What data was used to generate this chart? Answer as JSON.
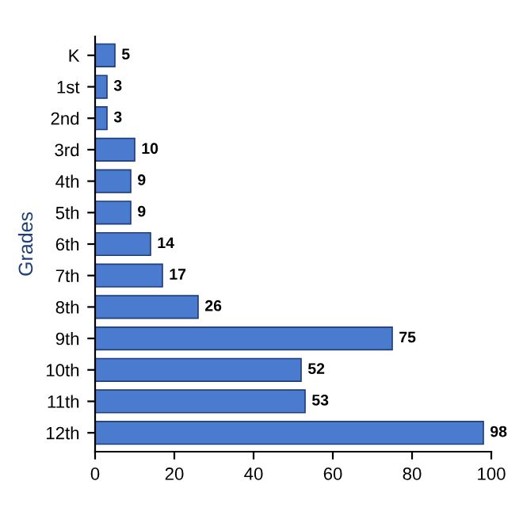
{
  "chart_data": {
    "type": "bar",
    "orientation": "horizontal",
    "ylabel": "Grades",
    "categories": [
      "K",
      "1st",
      "2nd",
      "3rd",
      "4th",
      "5th",
      "6th",
      "7th",
      "8th",
      "9th",
      "10th",
      "11th",
      "12th"
    ],
    "values": [
      5,
      3,
      3,
      10,
      9,
      9,
      14,
      17,
      26,
      75,
      52,
      53,
      98
    ],
    "color": "#4a7bcf",
    "data_labels": true,
    "xlim": [
      0,
      100
    ],
    "xticks": [
      0,
      20,
      40,
      60,
      80,
      100
    ],
    "grid": false
  }
}
